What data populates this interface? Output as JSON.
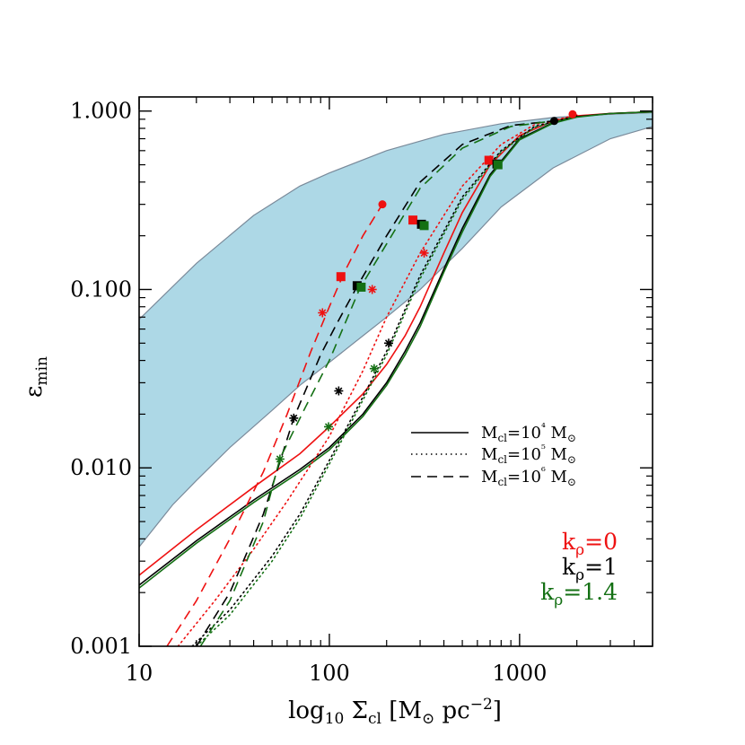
{
  "chart_data": {
    "type": "line",
    "xlabel": "log₁₀ Σ_cl [M_⊙ pc⁻²]",
    "ylabel": "ε_min",
    "xscale": "log",
    "yscale": "log",
    "xlim": [
      10,
      5000
    ],
    "ylim": [
      0.001,
      1.2
    ],
    "x_ticks": [
      "10",
      "100",
      "1000"
    ],
    "x_tick_values": [
      10,
      100,
      1000
    ],
    "y_ticks": [
      "0.001",
      "0.010",
      "0.100",
      "1.000"
    ],
    "y_tick_values": [
      0.001,
      0.01,
      0.1,
      1.0
    ],
    "legend_position": "right",
    "legend_linestyles": [
      {
        "style": "solid",
        "label": "M_cl=10⁴ M_⊙"
      },
      {
        "style": "dotted",
        "label": "M_cl=10⁵ M_⊙"
      },
      {
        "style": "dashed",
        "label": "M_cl=10⁶ M_⊙"
      }
    ],
    "legend_colors": [
      {
        "color": "#ee1111",
        "label": "k_ρ=0"
      },
      {
        "color": "#000000",
        "label": "k_ρ=1"
      },
      {
        "color": "#147014",
        "label": "k_ρ=1.4"
      }
    ],
    "band": {
      "color": "#add8e6",
      "upper": [
        [
          10,
          0.068
        ],
        [
          20,
          0.14
        ],
        [
          40,
          0.26
        ],
        [
          70,
          0.38
        ],
        [
          100,
          0.45
        ],
        [
          200,
          0.6
        ],
        [
          400,
          0.74
        ],
        [
          800,
          0.85
        ],
        [
          1500,
          0.92
        ],
        [
          3000,
          0.96
        ],
        [
          5000,
          0.98
        ]
      ],
      "lower": [
        [
          10,
          0.0036
        ],
        [
          15,
          0.0062
        ],
        [
          20,
          0.0085
        ],
        [
          30,
          0.013
        ],
        [
          50,
          0.021
        ],
        [
          70,
          0.029
        ],
        [
          100,
          0.039
        ],
        [
          150,
          0.055
        ],
        [
          200,
          0.07
        ],
        [
          300,
          0.1
        ],
        [
          500,
          0.17
        ],
        [
          800,
          0.29
        ],
        [
          1500,
          0.48
        ],
        [
          3000,
          0.7
        ],
        [
          5000,
          0.82
        ]
      ]
    },
    "series": [
      {
        "k": "0",
        "color": "#ee1111",
        "style": "solid",
        "x": [
          10,
          20,
          40,
          70,
          100,
          150,
          200,
          250,
          300,
          400,
          500,
          700,
          1000,
          1500,
          2000,
          3000,
          5000
        ],
        "y": [
          0.0025,
          0.0045,
          0.0078,
          0.012,
          0.017,
          0.026,
          0.038,
          0.055,
          0.08,
          0.16,
          0.27,
          0.5,
          0.73,
          0.88,
          0.94,
          0.97,
          0.99
        ]
      },
      {
        "k": "1",
        "color": "#000000",
        "style": "solid",
        "x": [
          10,
          20,
          40,
          70,
          100,
          150,
          200,
          250,
          300,
          400,
          500,
          700,
          1000,
          1500,
          2000,
          3000,
          5000
        ],
        "y": [
          0.0022,
          0.0039,
          0.0066,
          0.0098,
          0.013,
          0.02,
          0.03,
          0.045,
          0.065,
          0.13,
          0.22,
          0.44,
          0.7,
          0.86,
          0.93,
          0.97,
          0.99
        ]
      },
      {
        "k": "1.4",
        "color": "#147014",
        "style": "solid",
        "x": [
          10,
          20,
          40,
          70,
          100,
          150,
          200,
          250,
          300,
          400,
          500,
          700,
          1000,
          1500,
          2000,
          3000,
          5000
        ],
        "y": [
          0.00212,
          0.00378,
          0.0064,
          0.0095,
          0.0126,
          0.0194,
          0.029,
          0.043,
          0.062,
          0.125,
          0.21,
          0.43,
          0.69,
          0.855,
          0.925,
          0.968,
          0.99
        ]
      },
      {
        "k": "0",
        "color": "#ee1111",
        "style": "dotted",
        "x": [
          16,
          25,
          40,
          60,
          100,
          150,
          200,
          300,
          500,
          800,
          1200,
          2000
        ],
        "y": [
          0.001,
          0.0018,
          0.0035,
          0.0065,
          0.015,
          0.035,
          0.07,
          0.16,
          0.38,
          0.65,
          0.84,
          0.95
        ]
      },
      {
        "k": "1",
        "color": "#000000",
        "style": "dotted",
        "x": [
          19,
          30,
          50,
          70,
          100,
          150,
          200,
          300,
          500,
          800,
          1200,
          2000
        ],
        "y": [
          0.001,
          0.0016,
          0.0032,
          0.0055,
          0.011,
          0.025,
          0.045,
          0.12,
          0.33,
          0.6,
          0.82,
          0.94
        ]
      },
      {
        "k": "1.4",
        "color": "#147014",
        "style": "dotted",
        "x": [
          20,
          30,
          50,
          70,
          100,
          150,
          200,
          300,
          500,
          800,
          1200,
          2000
        ],
        "y": [
          0.001,
          0.0015,
          0.003,
          0.0052,
          0.0105,
          0.024,
          0.043,
          0.115,
          0.32,
          0.59,
          0.81,
          0.94
        ]
      },
      {
        "k": "0",
        "color": "#ee1111",
        "style": "dashed",
        "x": [
          14,
          20,
          30,
          45,
          60,
          80,
          100,
          120,
          150,
          190
        ],
        "y": [
          0.001,
          0.0018,
          0.004,
          0.0095,
          0.02,
          0.045,
          0.08,
          0.125,
          0.2,
          0.3
        ]
      },
      {
        "k": "1",
        "color": "#000000",
        "style": "dashed",
        "x": [
          20,
          30,
          45,
          65,
          90,
          110,
          140,
          200,
          300,
          500,
          900,
          1500
        ],
        "y": [
          0.001,
          0.002,
          0.0055,
          0.019,
          0.043,
          0.065,
          0.104,
          0.2,
          0.4,
          0.65,
          0.83,
          0.88
        ]
      },
      {
        "k": "1.4",
        "color": "#147014",
        "style": "dashed",
        "x": [
          21,
          30,
          45,
          55,
          75,
          100,
          145,
          200,
          300,
          500,
          900,
          1500
        ],
        "y": [
          0.001,
          0.0018,
          0.005,
          0.0113,
          0.022,
          0.04,
          0.102,
          0.18,
          0.37,
          0.62,
          0.82,
          0.88
        ]
      }
    ],
    "markers": [
      {
        "shape": "circle",
        "color": "#ee1111",
        "x": 190,
        "y": 0.3
      },
      {
        "shape": "circle",
        "color": "#ee1111",
        "x": 1900,
        "y": 0.96
      },
      {
        "shape": "circle",
        "color": "#000000",
        "x": 1520,
        "y": 0.88
      },
      {
        "shape": "square",
        "color": "#ee1111",
        "x": 115,
        "y": 0.118
      },
      {
        "shape": "square",
        "color": "#000000",
        "x": 140,
        "y": 0.105
      },
      {
        "shape": "square",
        "color": "#147014",
        "x": 147,
        "y": 0.103
      },
      {
        "shape": "square",
        "color": "#ee1111",
        "x": 275,
        "y": 0.245
      },
      {
        "shape": "square",
        "color": "#000000",
        "x": 305,
        "y": 0.232
      },
      {
        "shape": "square",
        "color": "#147014",
        "x": 315,
        "y": 0.228
      },
      {
        "shape": "square",
        "color": "#ee1111",
        "x": 690,
        "y": 0.53
      },
      {
        "shape": "square",
        "color": "#000000",
        "x": 760,
        "y": 0.505
      },
      {
        "shape": "square",
        "color": "#147014",
        "x": 770,
        "y": 0.5
      },
      {
        "shape": "asterisk",
        "color": "#ee1111",
        "x": 92,
        "y": 0.074
      },
      {
        "shape": "asterisk",
        "color": "#ee1111",
        "x": 168,
        "y": 0.1
      },
      {
        "shape": "asterisk",
        "color": "#ee1111",
        "x": 315,
        "y": 0.16
      },
      {
        "shape": "asterisk",
        "color": "#000000",
        "x": 65,
        "y": 0.019
      },
      {
        "shape": "asterisk",
        "color": "#000000",
        "x": 112,
        "y": 0.027
      },
      {
        "shape": "asterisk",
        "color": "#000000",
        "x": 205,
        "y": 0.05
      },
      {
        "shape": "asterisk",
        "color": "#147014",
        "x": 55,
        "y": 0.0112
      },
      {
        "shape": "asterisk",
        "color": "#147014",
        "x": 99,
        "y": 0.017
      },
      {
        "shape": "asterisk",
        "color": "#147014",
        "x": 172,
        "y": 0.036
      }
    ]
  }
}
